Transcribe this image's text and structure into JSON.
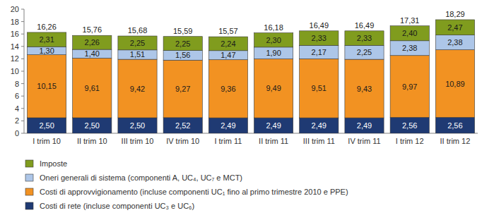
{
  "chart_data": {
    "type": "bar",
    "stacked": true,
    "data_labels": true,
    "grid": false,
    "legend": "bottom",
    "categories": [
      "I trim 10",
      "II trim 10",
      "III trim 10",
      "IV trim 10",
      "I trim 11",
      "II trim 11",
      "III trim 11",
      "IV trim 11",
      "I trim 12",
      "II trim 12"
    ],
    "ylim": [
      0,
      20
    ],
    "yticks": [
      0,
      2,
      4,
      6,
      8,
      10,
      12,
      14,
      16,
      18,
      20
    ],
    "totals": [
      16.26,
      15.76,
      15.68,
      15.59,
      15.57,
      16.18,
      16.49,
      16.49,
      17.31,
      18.29
    ],
    "total_labels": [
      "16,26",
      "15,76",
      "15,68",
      "15,59",
      "15,57",
      "16,18",
      "16,49",
      "16,49",
      "17,31",
      "18,29"
    ],
    "series": [
      {
        "name": "Costi di rete (incluse componenti UC₃ e UC₆)",
        "color": "#1f3a73",
        "values": [
          2.5,
          2.5,
          2.5,
          2.52,
          2.49,
          2.49,
          2.49,
          2.49,
          2.56,
          2.56
        ],
        "value_labels": [
          "2,50",
          "2,50",
          "2,50",
          "2,52",
          "2,49",
          "2,49",
          "2,49",
          "2,49",
          "2,56",
          "2,56"
        ]
      },
      {
        "name": "Costi di approvvigionamento (incluse componenti UC₁ fino al primo trimestre 2010 e PPE)",
        "color": "#f29222",
        "values": [
          10.15,
          9.61,
          9.42,
          9.27,
          9.36,
          9.49,
          9.51,
          9.43,
          9.97,
          10.89
        ],
        "value_labels": [
          "10,15",
          "9,61",
          "9,42",
          "9,27",
          "9,36",
          "9,49",
          "9,51",
          "9,43",
          "9,97",
          "10,89"
        ]
      },
      {
        "name": "Oneri generali di sistema (componenti A, UC₄, UC₇ e MCT)",
        "color": "#adc6e8",
        "values": [
          1.3,
          1.4,
          1.51,
          1.56,
          1.47,
          1.9,
          2.17,
          2.25,
          2.38,
          2.38
        ],
        "value_labels": [
          "1,30",
          "1,40",
          "1,51",
          "1,56",
          "1,47",
          "1,90",
          "2,17",
          "2,25",
          "2,38",
          "2,38"
        ]
      },
      {
        "name": "Imposte",
        "color": "#809c1e",
        "values": [
          2.31,
          2.26,
          2.25,
          2.25,
          2.24,
          2.3,
          2.33,
          2.33,
          2.4,
          2.47
        ],
        "value_labels": [
          "2,31",
          "2,26",
          "2,25",
          "2,25",
          "2,24",
          "2,30",
          "2,33",
          "2,33",
          "2,40",
          "2,47"
        ]
      }
    ]
  }
}
